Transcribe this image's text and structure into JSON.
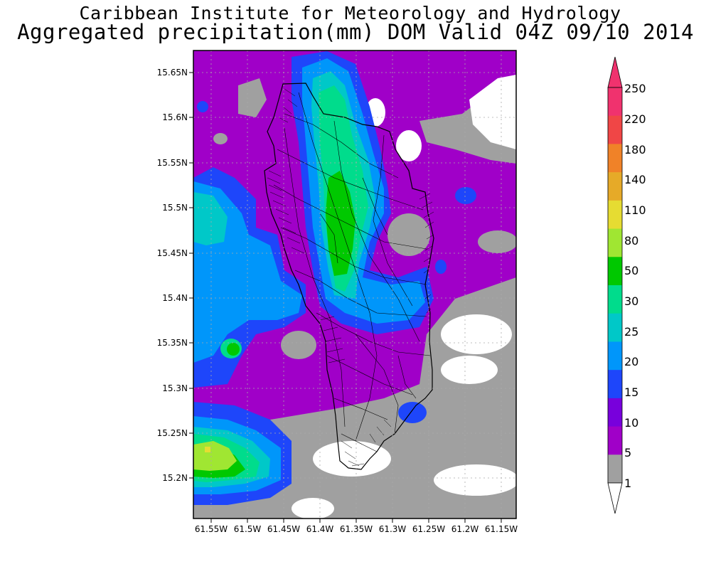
{
  "header": {
    "institute": "Caribbean Institute for Meteorology and Hydrology",
    "product": "Aggregated precipitation(mm) DOM Valid 04Z 09/10 2014"
  },
  "map": {
    "lat_ticks": [
      "15.65N",
      "15.6N",
      "15.55N",
      "15.5N",
      "15.45N",
      "15.4N",
      "15.35N",
      "15.3N",
      "15.25N",
      "15.2N"
    ],
    "lon_ticks": [
      "61.55W",
      "61.5W",
      "61.45W",
      "61.4W",
      "61.35W",
      "61.3W",
      "61.25W",
      "61.2W",
      "61.15W"
    ],
    "units": "mm",
    "grid": true
  },
  "colorbar": {
    "levels": [
      "250",
      "220",
      "180",
      "140",
      "110",
      "80",
      "50",
      "30",
      "25",
      "20",
      "15",
      "10",
      "5",
      "1"
    ],
    "colors": [
      "#f0326e",
      "#f04646",
      "#f08228",
      "#e6aa28",
      "#e6dc32",
      "#a0e632",
      "#00c800",
      "#00dc8c",
      "#00c8c8",
      "#0096fa",
      "#1e46fa",
      "#7800dc",
      "#a000c8",
      "#a0a0a0"
    ]
  }
}
